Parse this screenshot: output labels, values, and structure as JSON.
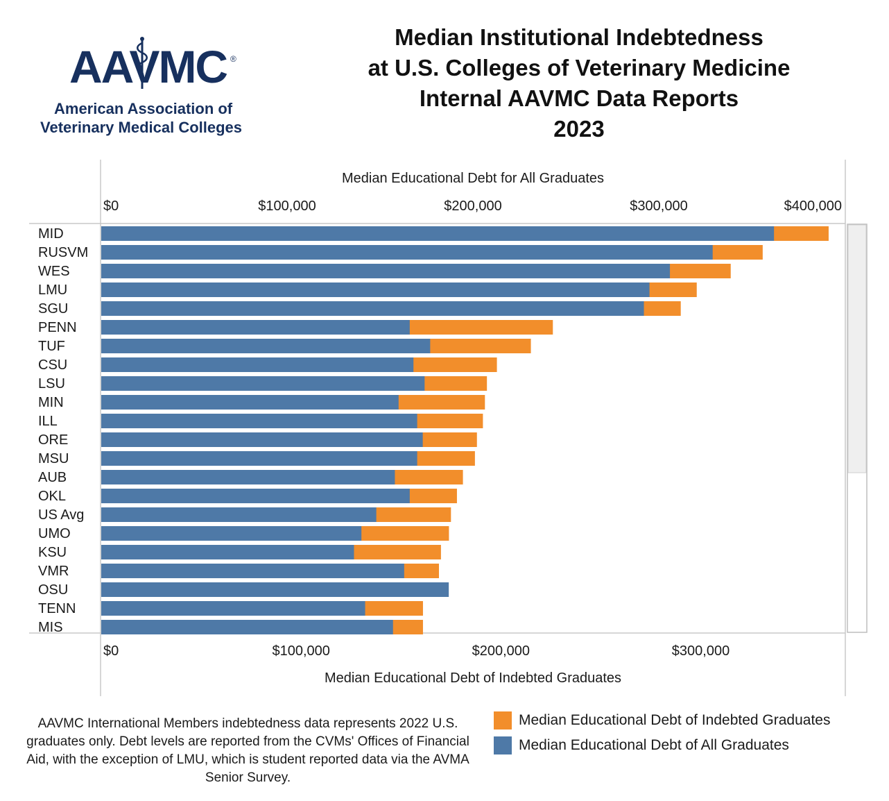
{
  "logo": {
    "mark": "AAVMC",
    "registered": "®",
    "line1": "American Association of",
    "line2": "Veterinary Medical Colleges"
  },
  "title_lines": [
    "Median Institutional Indebtedness",
    "at U.S. Colleges of Veterinary Medicine",
    "Internal AAVMC Data Reports",
    "2023"
  ],
  "colors": {
    "all": "#4e79a7",
    "indebted": "#f28e2b"
  },
  "chart_data": {
    "type": "bar",
    "orientation": "horizontal",
    "stacked": true,
    "categories": [
      "MID",
      "RUSVM",
      "WES",
      "LMU",
      "SGU",
      "PENN",
      "TUF",
      "CSU",
      "LSU",
      "MIN",
      "ILL",
      "ORE",
      "MSU",
      "AUB",
      "OKL",
      "US Avg",
      "UMO",
      "KSU",
      "VMR",
      "OSU",
      "TENN",
      "MIS"
    ],
    "top_axis": {
      "label": "Median Educational Debt for All Graduates",
      "ticks": [
        0,
        100000,
        200000,
        300000,
        400000
      ],
      "tick_labels": [
        "$0",
        "$100,000",
        "$200,000",
        "$300,000",
        "$400,000"
      ],
      "range": [
        0,
        400000
      ]
    },
    "bottom_axis": {
      "label": "Median Educational Debt of Indebted Graduates",
      "ticks": [
        0,
        100000,
        200000,
        300000
      ],
      "tick_labels": [
        "$0",
        "$100,000",
        "$200,000",
        "$300,000"
      ],
      "range": [
        0,
        372000
      ]
    },
    "series": [
      {
        "name": "Median Educational Debt of All Graduates",
        "values": [
          362000,
          329000,
          306000,
          295000,
          292000,
          166000,
          177000,
          168000,
          174000,
          160000,
          170000,
          173000,
          170000,
          158000,
          166000,
          148000,
          140000,
          136000,
          163000,
          187000,
          142000,
          157000
        ]
      },
      {
        "name": "Median Educational Debt of Indebted Graduates",
        "values": [
          364000,
          331000,
          315000,
          298000,
          290000,
          226000,
          215000,
          198000,
          193000,
          192000,
          191000,
          188000,
          187000,
          181000,
          178000,
          175000,
          174000,
          170000,
          169000,
          160000,
          161000,
          161000
        ]
      }
    ],
    "legend": [
      {
        "label": "Median Educational Debt of Indebted Graduates",
        "color": "#f28e2b"
      },
      {
        "label": "Median Educational Debt of All Graduates",
        "color": "#4e79a7"
      }
    ],
    "legend_position": "bottom-right",
    "grid": false
  },
  "note": "AAVMC International Members indebtedness data represents 2022 U.S. graduates only. Debt levels are reported from the CVMs' Offices of Financial Aid, with the exception of LMU, which is student reported data via the AVMA Senior Survey."
}
